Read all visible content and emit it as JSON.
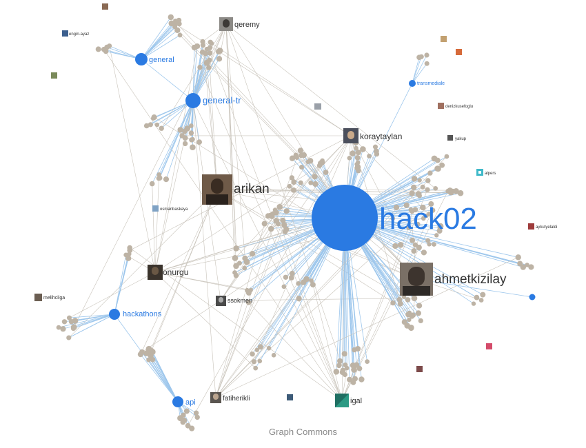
{
  "channels": [
    {
      "id": "hack02",
      "label": "hack02"
    },
    {
      "id": "general",
      "label": "general"
    },
    {
      "id": "general-tr",
      "label": "general-tr"
    },
    {
      "id": "hackathons",
      "label": "hackathons"
    },
    {
      "id": "api",
      "label": "api"
    },
    {
      "id": "transmediale",
      "label": "transmediale"
    },
    {
      "id": "unlabeled",
      "label": ""
    }
  ],
  "users": [
    {
      "id": "arikan",
      "label": "arikan"
    },
    {
      "id": "ahmetkizilay",
      "label": "ahmetkizilay"
    },
    {
      "id": "koraytaylan",
      "label": "koraytaylan"
    },
    {
      "id": "qeremy",
      "label": "qeremy"
    },
    {
      "id": "onurgu",
      "label": "onurgu"
    },
    {
      "id": "ssokmen",
      "label": "ssokmen"
    },
    {
      "id": "fatiherikli",
      "label": "fatiherikli"
    },
    {
      "id": "igal",
      "label": "igal"
    },
    {
      "id": "melihcilga",
      "label": "melihcilga"
    },
    {
      "id": "osmanbaskaya",
      "label": "osmanbaskaya"
    },
    {
      "id": "engin-ayaz",
      "label": "engin-ayaz"
    },
    {
      "id": "denizkusefoglu",
      "label": "denizkusefoglu"
    },
    {
      "id": "yakup",
      "label": "yakup"
    },
    {
      "id": "alpers",
      "label": "alpers"
    },
    {
      "id": "aykutyelaldi",
      "label": "aykutyelaldi"
    }
  ],
  "footer": {
    "text": "Graph Commons"
  },
  "colors": {
    "channel": "#2a7ae2",
    "minor_node": "#bdb3a5",
    "edge_blue": "#9cc6ec",
    "edge_grey": "#c8c3ba"
  }
}
